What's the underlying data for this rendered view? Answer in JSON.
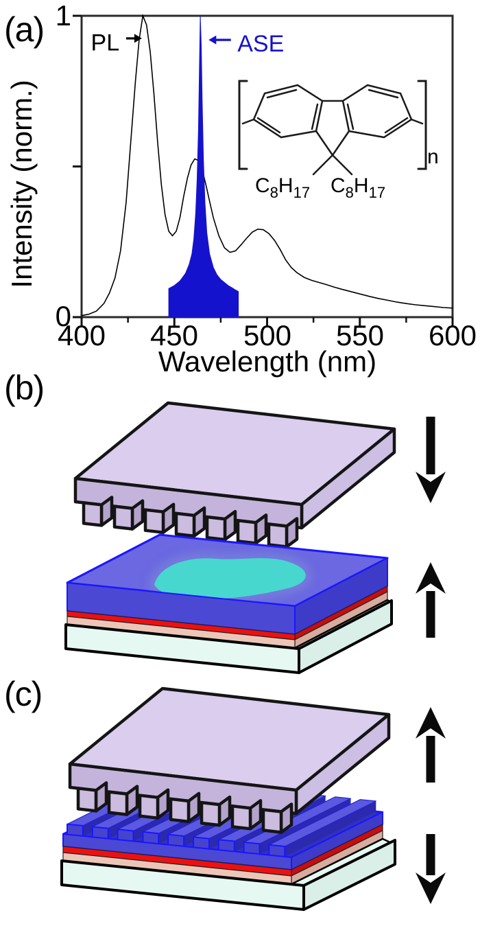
{
  "panels": {
    "a": {
      "label": "(a)"
    },
    "b": {
      "label": "(b)",
      "top_arrow": "down",
      "bottom_arrow": "up"
    },
    "c": {
      "label": "(c)",
      "top_arrow": "up",
      "bottom_arrow": "down"
    }
  },
  "chart_data": {
    "type": "line",
    "title": "",
    "xlabel": "Wavelength (nm)",
    "ylabel": "Intensity (norm.)",
    "xlim": [
      400,
      600
    ],
    "ylim": [
      0,
      1
    ],
    "grid": false,
    "xtick_labels": [
      "400",
      "450",
      "500",
      "550",
      "600"
    ],
    "xtick_values": [
      400,
      450,
      500,
      550,
      600
    ],
    "xtick_minor": [
      425,
      475,
      525,
      575
    ],
    "ytick_values": [
      0,
      0.5,
      1
    ],
    "ytick_label_bottom": "0",
    "ytick_label_top": "1",
    "series": [
      {
        "name": "PL",
        "type": "line",
        "color": "#000000",
        "x": [
          400,
          404,
          408,
          412,
          415,
          418,
          421,
          424,
          427,
          429,
          431,
          433,
          435,
          437,
          439,
          441,
          443,
          445,
          447,
          449,
          451,
          453,
          455,
          457,
          459,
          461,
          463,
          465,
          467,
          469,
          471,
          474,
          477,
          480,
          483,
          486,
          489,
          492,
          495,
          498,
          501,
          504,
          507,
          510,
          513,
          516,
          520,
          524,
          528,
          532,
          536,
          540,
          545,
          550,
          555,
          560,
          565,
          570,
          575,
          580,
          585,
          590,
          595,
          600
        ],
        "y": [
          0.005,
          0.01,
          0.02,
          0.045,
          0.08,
          0.13,
          0.22,
          0.38,
          0.62,
          0.78,
          0.92,
          1.0,
          0.97,
          0.88,
          0.74,
          0.58,
          0.44,
          0.34,
          0.285,
          0.27,
          0.285,
          0.33,
          0.4,
          0.46,
          0.505,
          0.525,
          0.52,
          0.49,
          0.44,
          0.385,
          0.33,
          0.27,
          0.23,
          0.215,
          0.22,
          0.24,
          0.262,
          0.282,
          0.292,
          0.29,
          0.277,
          0.255,
          0.225,
          0.19,
          0.165,
          0.148,
          0.132,
          0.122,
          0.115,
          0.108,
          0.1,
          0.093,
          0.085,
          0.077,
          0.069,
          0.062,
          0.056,
          0.05,
          0.045,
          0.041,
          0.038,
          0.035,
          0.032,
          0.03
        ]
      },
      {
        "name": "ASE",
        "type": "filled-area",
        "color": "#1512CE",
        "x": [
          447,
          447,
          450,
          453,
          456,
          458,
          459.5,
          460.5,
          461.5,
          462.3,
          463,
          463.5,
          464,
          464.5,
          465,
          465.7,
          466.5,
          467.5,
          469,
          471,
          473,
          475,
          477,
          479,
          481,
          483,
          484.5,
          484.5
        ],
        "y": [
          0,
          0.095,
          0.105,
          0.12,
          0.145,
          0.175,
          0.21,
          0.26,
          0.345,
          0.46,
          0.62,
          0.82,
          1.0,
          0.9,
          0.72,
          0.52,
          0.38,
          0.28,
          0.21,
          0.165,
          0.14,
          0.125,
          0.115,
          0.105,
          0.098,
          0.09,
          0.085,
          0
        ]
      }
    ],
    "annotations": [
      {
        "text": "PL",
        "color": "#000000",
        "text_nm": 405,
        "text_intensity": 0.885,
        "arrow_tail_nm": 424,
        "arrow_tip_nm": 432.5,
        "arrow_intensity": 0.925,
        "direction": "right"
      },
      {
        "text": "ASE",
        "color": "#1512CE",
        "text_nm": 484,
        "text_intensity": 0.882,
        "arrow_tail_nm": 480.5,
        "arrow_tip_nm": 468.5,
        "arrow_intensity": 0.92,
        "direction": "left"
      }
    ]
  },
  "molecule": {
    "carbon": "C",
    "carbon_count": "8",
    "hydrogen": "H",
    "hydrogen_count": "17",
    "repeat": "n"
  },
  "colors": {
    "ase_blue": "#1512CE",
    "film_blue_top": "#6B68E1",
    "film_blue_front": "#4B48D4",
    "film_blue_side": "#3E3BC8",
    "film_edge_blue": "#1A16FF",
    "grating_floor": "#3331BC",
    "grating_bar_top": "#5B59E0",
    "grating_bar_front": "#4644CE",
    "grating_bar_side": "#2B29AE",
    "gain_spot_cyan": "#47D7CF",
    "gain_spot_halo": "#7C86D8",
    "red_layer": "#EE1010",
    "red_layer_side": "#C90D0D",
    "pink_layer": "#EDC5B7",
    "pink_layer_side": "#D7AB9D",
    "substrate_mint": "#E6F8F2",
    "substrate_mint_side": "#D9EFE8",
    "stamp_top": "#DACDEE",
    "stamp_front": "#C4B4DC",
    "stamp_side": "#CDBEE3",
    "stamp_tooth_front": "#CBBCE0",
    "stamp_tooth_side": "#B4A4CC",
    "outline_black": "#151515",
    "arrow_black": "#0A0A0A"
  }
}
